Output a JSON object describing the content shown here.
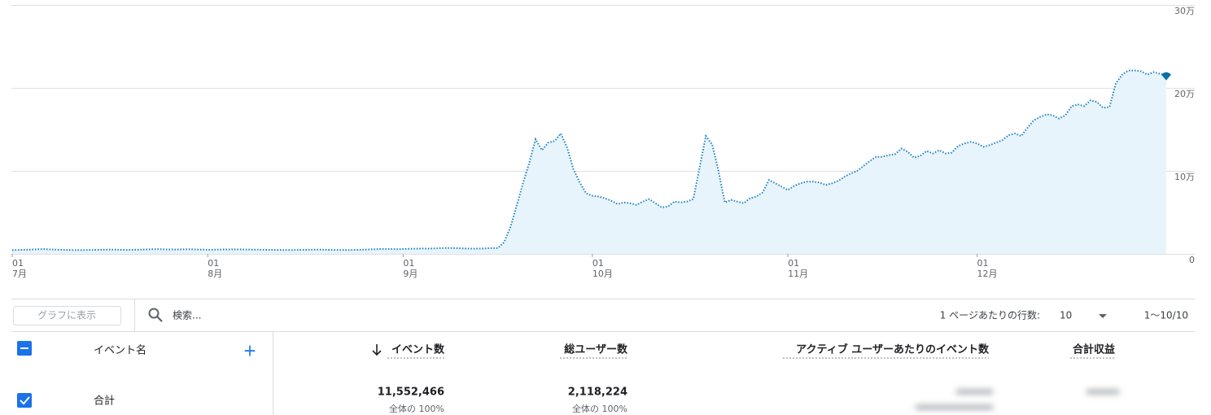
{
  "chart_data": {
    "type": "line",
    "color": "#1a7fc1",
    "fill": "#e8f4fc",
    "grid": true,
    "ylim": [
      0,
      300000
    ],
    "yticks": [
      {
        "value": 0,
        "label": "0"
      },
      {
        "value": 100000,
        "label": "10万"
      },
      {
        "value": 200000,
        "label": "20万"
      },
      {
        "value": 300000,
        "label": "30万"
      }
    ],
    "categories": [
      [
        "01",
        "7月"
      ],
      null,
      null,
      null,
      null,
      null,
      null,
      null,
      null,
      null,
      null,
      null,
      null,
      null,
      null,
      null,
      null,
      null,
      null,
      null,
      null,
      null,
      null,
      null,
      null,
      null,
      null,
      null,
      null,
      null,
      null,
      [
        "01",
        "8月"
      ],
      null,
      null,
      null,
      null,
      null,
      null,
      null,
      null,
      null,
      null,
      null,
      null,
      null,
      null,
      null,
      null,
      null,
      null,
      null,
      null,
      null,
      null,
      null,
      null,
      null,
      null,
      null,
      null,
      null,
      null,
      [
        "01",
        "9月"
      ],
      null,
      null,
      null,
      null,
      null,
      null,
      null,
      null,
      null,
      null,
      null,
      null,
      null,
      null,
      null,
      null,
      null,
      null,
      null,
      null,
      null,
      null,
      null,
      null,
      null,
      null,
      null,
      null,
      null,
      [
        "01",
        "10月"
      ],
      null,
      null,
      null,
      null,
      null,
      null,
      null,
      null,
      null,
      null,
      null,
      null,
      null,
      null,
      null,
      null,
      null,
      null,
      null,
      null,
      null,
      null,
      null,
      null,
      null,
      null,
      null,
      null,
      null,
      null,
      [
        "01",
        "11月"
      ],
      null,
      null,
      null,
      null,
      null,
      null,
      null,
      null,
      null,
      null,
      null,
      null,
      null,
      null,
      null,
      null,
      null,
      null,
      null,
      null,
      null,
      null,
      null,
      null,
      null,
      null,
      null,
      null,
      null,
      [
        "01",
        "12月"
      ],
      null,
      null,
      null,
      null,
      null,
      null,
      null,
      null,
      null,
      null,
      null,
      null,
      null,
      null,
      null,
      null,
      null,
      null,
      null,
      null,
      null,
      null,
      null,
      null,
      null,
      null,
      null,
      null,
      null,
      null
    ],
    "values": [
      4500,
      4800,
      5000,
      5200,
      5600,
      5800,
      5400,
      5100,
      4900,
      4700,
      4600,
      4500,
      4700,
      4900,
      5000,
      5100,
      5200,
      5000,
      4800,
      4900,
      5100,
      5300,
      5600,
      5700,
      5500,
      5400,
      5300,
      5500,
      5600,
      5400,
      5200,
      5000,
      5100,
      5300,
      5400,
      5500,
      5400,
      5300,
      5200,
      5100,
      5000,
      4900,
      4800,
      4700,
      4600,
      4800,
      4900,
      5000,
      5200,
      5100,
      4900,
      4800,
      4700,
      4600,
      4800,
      4900,
      5200,
      5500,
      5800,
      6000,
      5900,
      5700,
      5900,
      6100,
      6300,
      6500,
      6400,
      6600,
      7000,
      7200,
      7100,
      6800,
      6500,
      6300,
      6400,
      6600,
      7000,
      7000,
      14000,
      32000,
      58000,
      85000,
      110000,
      138000,
      125000,
      134000,
      136000,
      145000,
      128000,
      102000,
      86000,
      73000,
      70000,
      69000,
      67000,
      64000,
      60000,
      62000,
      61000,
      59000,
      63000,
      66000,
      61000,
      56000,
      57000,
      63000,
      62000,
      63000,
      66000,
      104000,
      142000,
      132000,
      100000,
      62000,
      65000,
      63000,
      61000,
      67000,
      69000,
      74000,
      89000,
      85000,
      81000,
      77000,
      82000,
      85000,
      87000,
      87000,
      86000,
      83000,
      85000,
      88000,
      93000,
      97000,
      100000,
      106000,
      112000,
      117000,
      117000,
      119000,
      120000,
      127000,
      123000,
      116000,
      118000,
      124000,
      121000,
      125000,
      121000,
      122000,
      130000,
      133000,
      135000,
      133000,
      129000,
      131000,
      134000,
      137000,
      143000,
      145000,
      142000,
      152000,
      161000,
      165000,
      168000,
      167000,
      163000,
      167000,
      178000,
      180000,
      178000,
      185000,
      183000,
      176000,
      177000,
      205000,
      216000,
      221000,
      221000,
      220000,
      216000,
      219000,
      217000,
      215000
    ]
  },
  "toolbar": {
    "chart_button": "グラフに表示",
    "search_placeholder": "検索...",
    "rows_per_page_label": "1 ページあたりの行数:",
    "rows_per_page": "10",
    "pagination": "1〜10/10"
  },
  "table": {
    "columns": [
      "イベント名",
      "イベント数",
      "総ユーザー数",
      "アクティブ ユーザーあたりのイベント数",
      "合計収益"
    ],
    "rows": [
      [
        "合計",
        "11,552,466",
        "全体の 100%",
        "2,118,224",
        "全体の 100%"
      ]
    ]
  }
}
